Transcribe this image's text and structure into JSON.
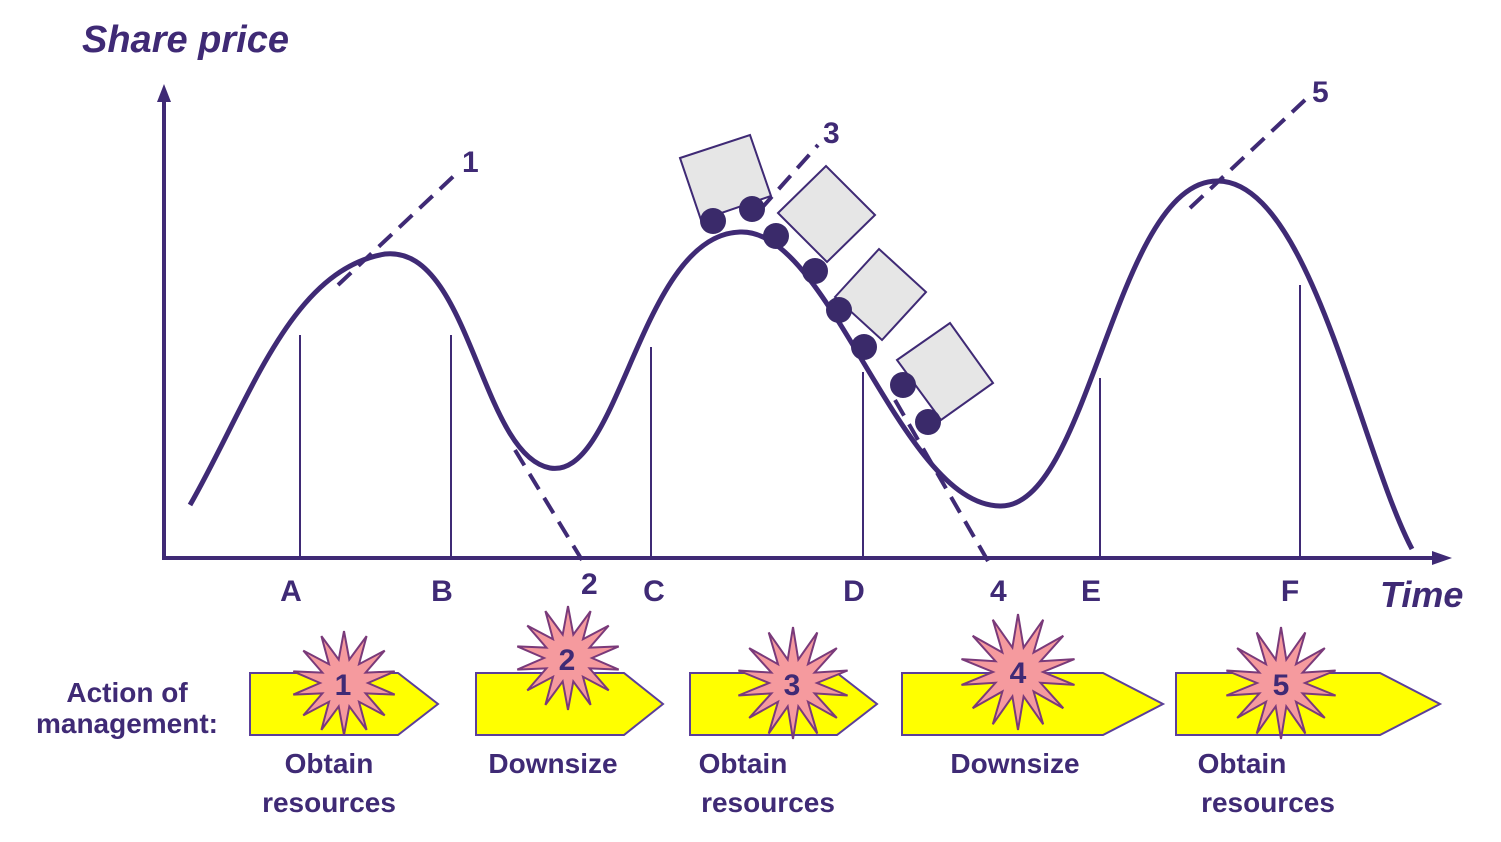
{
  "colors": {
    "ink": "#3f2a75",
    "arrow_fill": "#ffff00",
    "arrow_stroke": "#5b3f9a",
    "star_fill": "#f59a9e",
    "star_stroke": "#7a3a7a",
    "cart_fill": "#e6e6e6",
    "wheel": "#3a2a6a"
  },
  "y_axis_label": "Share price",
  "x_axis_label": "Time",
  "time_points": [
    "A",
    "B",
    "C",
    "D",
    "E",
    "F"
  ],
  "tangent_labels": [
    "1",
    "2",
    "3",
    "4",
    "5"
  ],
  "management": {
    "label_line1": "Action of",
    "label_line2": "management:",
    "actions": [
      {
        "number": "1",
        "line1": "Obtain",
        "line2": "resources"
      },
      {
        "number": "2",
        "line1": "Downsize",
        "line2": ""
      },
      {
        "number": "3",
        "line1": "Obtain",
        "line2": "resources"
      },
      {
        "number": "4",
        "line1": "Downsize",
        "line2": ""
      },
      {
        "number": "5",
        "line1": "Obtain",
        "line2": "resources"
      }
    ]
  },
  "icons": [
    "roller-coaster-icon",
    "starburst-icon"
  ]
}
